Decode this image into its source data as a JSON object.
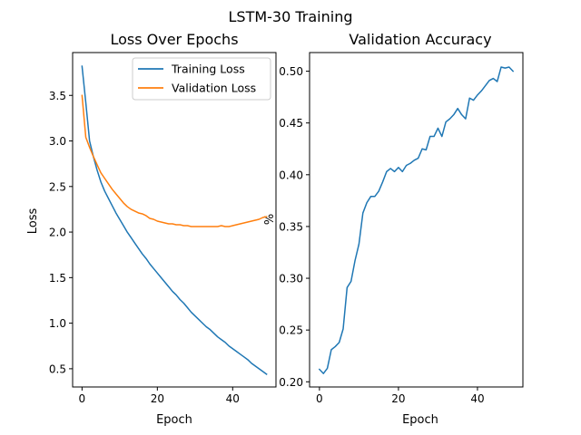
{
  "chart_data": {
    "title": "LSTM-30 Training",
    "subplots": [
      {
        "type": "line",
        "title": "Loss Over Epochs",
        "xlabel": "Epoch",
        "ylabel": "Loss",
        "xlim": [
          -2.5,
          51.5
        ],
        "ylim": [
          0.3,
          3.97
        ],
        "xticks": [
          0,
          20,
          40
        ],
        "yticks": [
          0.5,
          1.0,
          1.5,
          2.0,
          2.5,
          3.0,
          3.5
        ],
        "ytick_labels": [
          "0.5",
          "1.0",
          "1.5",
          "2.0",
          "2.5",
          "3.0",
          "3.5"
        ],
        "legend_position": "upper right",
        "x": [
          0,
          1,
          2,
          3,
          4,
          5,
          6,
          7,
          8,
          9,
          10,
          11,
          12,
          13,
          14,
          15,
          16,
          17,
          18,
          19,
          20,
          21,
          22,
          23,
          24,
          25,
          26,
          27,
          28,
          29,
          30,
          31,
          32,
          33,
          34,
          35,
          36,
          37,
          38,
          39,
          40,
          41,
          42,
          43,
          44,
          45,
          46,
          47,
          48,
          49
        ],
        "series": [
          {
            "name": "Training Loss",
            "color": "#1f77b4",
            "values": [
              3.82,
              3.42,
              3.0,
              2.83,
              2.68,
              2.55,
              2.45,
              2.37,
              2.29,
              2.21,
              2.14,
              2.07,
              2.0,
              1.94,
              1.88,
              1.82,
              1.76,
              1.71,
              1.65,
              1.6,
              1.55,
              1.5,
              1.45,
              1.4,
              1.35,
              1.31,
              1.26,
              1.22,
              1.17,
              1.12,
              1.08,
              1.04,
              1.0,
              0.96,
              0.93,
              0.89,
              0.85,
              0.82,
              0.79,
              0.75,
              0.72,
              0.69,
              0.66,
              0.63,
              0.6,
              0.56,
              0.53,
              0.5,
              0.47,
              0.44
            ]
          },
          {
            "name": "Validation Loss",
            "color": "#ff7f0e",
            "values": [
              3.5,
              3.04,
              2.93,
              2.83,
              2.74,
              2.65,
              2.59,
              2.53,
              2.47,
              2.42,
              2.37,
              2.32,
              2.28,
              2.25,
              2.23,
              2.21,
              2.2,
              2.18,
              2.15,
              2.14,
              2.12,
              2.11,
              2.1,
              2.09,
              2.09,
              2.08,
              2.08,
              2.07,
              2.07,
              2.06,
              2.06,
              2.06,
              2.06,
              2.06,
              2.06,
              2.06,
              2.06,
              2.07,
              2.06,
              2.06,
              2.07,
              2.08,
              2.09,
              2.1,
              2.11,
              2.12,
              2.13,
              2.14,
              2.16,
              2.17
            ]
          }
        ]
      },
      {
        "type": "line",
        "title": "Validation Accuracy",
        "xlabel": "Epoch",
        "ylabel": "%",
        "xlim": [
          -2.5,
          51.5
        ],
        "ylim": [
          0.195,
          0.518
        ],
        "xticks": [
          0,
          20,
          40
        ],
        "yticks": [
          0.2,
          0.25,
          0.3,
          0.35,
          0.4,
          0.45,
          0.5
        ],
        "ytick_labels": [
          "0.20",
          "0.25",
          "0.30",
          "0.35",
          "0.40",
          "0.45",
          "0.50"
        ],
        "x": [
          0,
          1,
          2,
          3,
          4,
          5,
          6,
          7,
          8,
          9,
          10,
          11,
          12,
          13,
          14,
          15,
          16,
          17,
          18,
          19,
          20,
          21,
          22,
          23,
          24,
          25,
          26,
          27,
          28,
          29,
          30,
          31,
          32,
          33,
          34,
          35,
          36,
          37,
          38,
          39,
          40,
          41,
          42,
          43,
          44,
          45,
          46,
          47,
          48,
          49
        ],
        "series": [
          {
            "color": "#1f77b4",
            "values": [
              0.212,
              0.208,
              0.213,
              0.231,
              0.234,
              0.238,
              0.251,
              0.291,
              0.297,
              0.317,
              0.333,
              0.363,
              0.373,
              0.379,
              0.379,
              0.384,
              0.393,
              0.403,
              0.406,
              0.403,
              0.407,
              0.403,
              0.409,
              0.411,
              0.414,
              0.416,
              0.425,
              0.424,
              0.437,
              0.437,
              0.445,
              0.437,
              0.451,
              0.454,
              0.458,
              0.464,
              0.458,
              0.454,
              0.474,
              0.472,
              0.477,
              0.481,
              0.486,
              0.491,
              0.493,
              0.49,
              0.504,
              0.503,
              0.504,
              0.5
            ]
          }
        ]
      }
    ]
  }
}
